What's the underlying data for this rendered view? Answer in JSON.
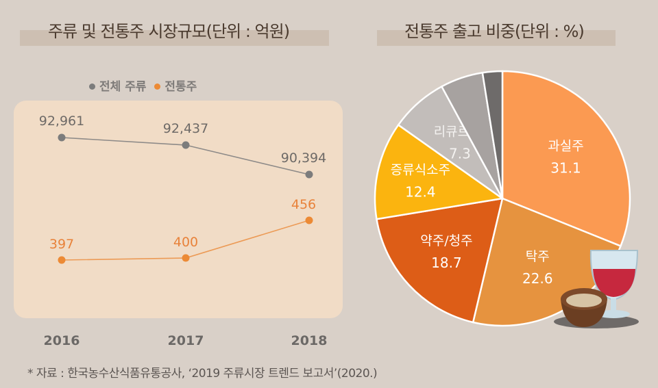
{
  "chart_data": [
    {
      "type": "line",
      "title": "주류 및 전통주 시장규모(단위 : 억원)",
      "categories": [
        "2016",
        "2017",
        "2018"
      ],
      "legend_position": "top",
      "grid": false,
      "series": [
        {
          "name": "전체 주류",
          "values": [
            92961,
            92437,
            90394
          ],
          "labels": [
            "92,961",
            "92,437",
            "90,394"
          ],
          "color": "#7c7c7c"
        },
        {
          "name": "전통주",
          "values": [
            397,
            400,
            456
          ],
          "labels": [
            "397",
            "400",
            "456"
          ],
          "color": "#ec8a35"
        }
      ]
    },
    {
      "type": "pie",
      "title": "전통주 출고 비중(단위 : %)",
      "slices": [
        {
          "label": "과실주",
          "value": 31.1,
          "display": "31.1",
          "color": "#fb9a52"
        },
        {
          "label": "탁주",
          "value": 22.6,
          "display": "22.6",
          "color": "#e6933f"
        },
        {
          "label": "약주/청주",
          "value": 18.7,
          "display": "18.7",
          "color": "#dd5d17"
        },
        {
          "label": "증류식소주",
          "value": 12.4,
          "display": "12.4",
          "color": "#fbb40f"
        },
        {
          "label": "리큐르",
          "value": 7.3,
          "display": "7.3",
          "color": "#c2bdba"
        },
        {
          "label": "",
          "value": 5.4,
          "display": "",
          "color": "#a7a2a0"
        },
        {
          "label": "",
          "value": 2.5,
          "display": "",
          "color": "#6e6b6a"
        }
      ]
    }
  ],
  "source": "* 자료 : 한국농수산식품유통공사, ‘2019 주류시장 트렌드 보고서’(2020.)",
  "illustration": "wine-glass-and-makgeolli-bowl"
}
